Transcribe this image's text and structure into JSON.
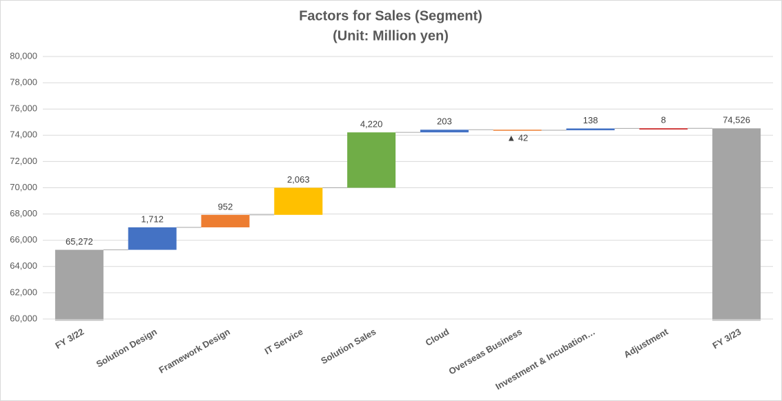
{
  "chart_data": {
    "type": "waterfall",
    "title": "Factors for Sales (Segment)",
    "subtitle": "(Unit: Million yen)",
    "categories": [
      "FY 3/22",
      "Solution Design",
      "Framework Design",
      "IT Service",
      "Solution Sales",
      "Cloud",
      "Overseas Business",
      "Investment & Incubation…",
      "Adjustment",
      "FY 3/23"
    ],
    "values": [
      65272,
      1712,
      952,
      2063,
      4220,
      203,
      -42,
      138,
      8,
      74526
    ],
    "value_labels": [
      "65,272",
      "1,712",
      "952",
      "2,063",
      "4,220",
      "203",
      "▲ 42",
      "138",
      "8",
      "74,526"
    ],
    "measure": [
      "absolute",
      "relative",
      "relative",
      "relative",
      "relative",
      "relative",
      "relative",
      "relative",
      "relative",
      "absolute"
    ],
    "colors": [
      "#a5a5a5",
      "#4472c4",
      "#ed7d31",
      "#ffc000",
      "#70ad47",
      "#4472c4",
      "#ed7d31",
      "#4472c4",
      "#c00000",
      "#a5a5a5"
    ],
    "ylim": [
      60000,
      80000
    ],
    "yticks": [
      {
        "value": 60000,
        "label": "60,000"
      },
      {
        "value": 62000,
        "label": "62,000"
      },
      {
        "value": 64000,
        "label": "64,000"
      },
      {
        "value": 66000,
        "label": "66,000"
      },
      {
        "value": 68000,
        "label": "68,000"
      },
      {
        "value": 70000,
        "label": "70,000"
      },
      {
        "value": 72000,
        "label": "72,000"
      },
      {
        "value": 74000,
        "label": "74,000"
      },
      {
        "value": 76000,
        "label": "76,000"
      },
      {
        "value": 78000,
        "label": "78,000"
      },
      {
        "value": 80000,
        "label": "80,000"
      }
    ],
    "grid": true
  }
}
